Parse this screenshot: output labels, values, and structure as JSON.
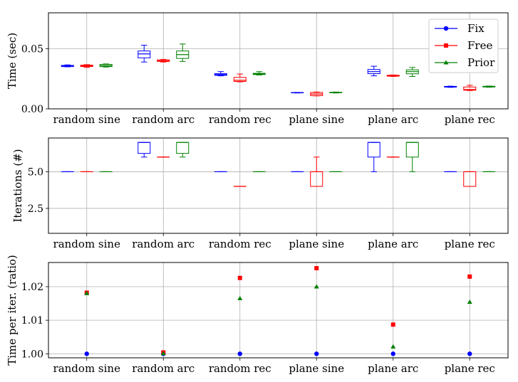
{
  "colors": {
    "Fix": "#0000ff",
    "Free": "#ff0000",
    "Prior": "#008000"
  },
  "chart_data": [
    {
      "type": "box",
      "ylabel": "Time (sec)",
      "categories": [
        "random sine",
        "random arc",
        "random rec",
        "plane sine",
        "plane arc",
        "plane rec"
      ],
      "ylim": [
        0,
        0.08
      ],
      "yticks": [
        "0.00",
        "0.05"
      ],
      "ytick_values": [
        0,
        0.05
      ],
      "grid": true,
      "legend": {
        "placement": "top-right",
        "entries": [
          "Fix",
          "Free",
          "Prior"
        ]
      },
      "series": [
        {
          "name": "Fix",
          "marker": "circle",
          "boxes": [
            {
              "whislo": 0.035,
              "q1": 0.0352,
              "med": 0.0356,
              "q3": 0.0362,
              "whishi": 0.0366
            },
            {
              "whislo": 0.039,
              "q1": 0.0425,
              "med": 0.0458,
              "q3": 0.0482,
              "whishi": 0.053
            },
            {
              "whislo": 0.0275,
              "q1": 0.0279,
              "med": 0.0285,
              "q3": 0.0293,
              "whishi": 0.031
            },
            {
              "whislo": 0.0132,
              "q1": 0.0133,
              "med": 0.0135,
              "q3": 0.0136,
              "whishi": 0.0137
            },
            {
              "whislo": 0.0275,
              "q1": 0.0293,
              "med": 0.031,
              "q3": 0.0328,
              "whishi": 0.0355
            },
            {
              "whislo": 0.0179,
              "q1": 0.0181,
              "med": 0.0184,
              "q3": 0.0187,
              "whishi": 0.0189
            }
          ]
        },
        {
          "name": "Free",
          "marker": "square",
          "boxes": [
            {
              "whislo": 0.0345,
              "q1": 0.0352,
              "med": 0.0358,
              "q3": 0.0364,
              "whishi": 0.0368
            },
            {
              "whislo": 0.039,
              "q1": 0.0395,
              "med": 0.04,
              "q3": 0.0408,
              "whishi": 0.0412
            },
            {
              "whislo": 0.0225,
              "q1": 0.0228,
              "med": 0.0238,
              "q3": 0.0262,
              "whishi": 0.029
            },
            {
              "whislo": 0.0108,
              "q1": 0.011,
              "med": 0.0123,
              "q3": 0.0136,
              "whishi": 0.014
            },
            {
              "whislo": 0.027,
              "q1": 0.0272,
              "med": 0.0275,
              "q3": 0.028,
              "whishi": 0.0282
            },
            {
              "whislo": 0.0152,
              "q1": 0.0155,
              "med": 0.0162,
              "q3": 0.0182,
              "whishi": 0.0196
            }
          ]
        },
        {
          "name": "Prior",
          "marker": "triangle",
          "boxes": [
            {
              "whislo": 0.0348,
              "q1": 0.0352,
              "med": 0.036,
              "q3": 0.037,
              "whishi": 0.0374
            },
            {
              "whislo": 0.0395,
              "q1": 0.042,
              "med": 0.0452,
              "q3": 0.0482,
              "whishi": 0.054
            },
            {
              "whislo": 0.0282,
              "q1": 0.0286,
              "med": 0.029,
              "q3": 0.0296,
              "whishi": 0.031
            },
            {
              "whislo": 0.0132,
              "q1": 0.0134,
              "med": 0.0136,
              "q3": 0.0138,
              "whishi": 0.014
            },
            {
              "whislo": 0.027,
              "q1": 0.0292,
              "med": 0.031,
              "q3": 0.0325,
              "whishi": 0.0345
            },
            {
              "whislo": 0.018,
              "q1": 0.0182,
              "med": 0.0185,
              "q3": 0.0188,
              "whishi": 0.019
            }
          ]
        }
      ]
    },
    {
      "type": "box",
      "ylabel": "Iterations (#)",
      "categories": [
        "random sine",
        "random arc",
        "random rec",
        "plane sine",
        "plane arc",
        "plane rec"
      ],
      "ylim": [
        0.8,
        7.3
      ],
      "yticks": [
        "2.5",
        "5.0"
      ],
      "ytick_values": [
        2.5,
        5.0
      ],
      "grid": true,
      "series": [
        {
          "name": "Fix",
          "boxes": [
            {
              "whislo": 5,
              "q1": 5,
              "med": 5,
              "q3": 5,
              "whishi": 5
            },
            {
              "whislo": 6,
              "q1": 6.25,
              "med": 7,
              "q3": 7,
              "whishi": 7
            },
            {
              "whislo": 5,
              "q1": 5,
              "med": 5,
              "q3": 5,
              "whishi": 5
            },
            {
              "whislo": 5,
              "q1": 5,
              "med": 5,
              "q3": 5,
              "whishi": 5
            },
            {
              "whislo": 5,
              "q1": 6,
              "med": 7,
              "q3": 7,
              "whishi": 7
            },
            {
              "whislo": 5,
              "q1": 5,
              "med": 5,
              "q3": 5,
              "whishi": 5
            }
          ]
        },
        {
          "name": "Free",
          "boxes": [
            {
              "whislo": 5,
              "q1": 5,
              "med": 5,
              "q3": 5,
              "whishi": 5
            },
            {
              "whislo": 6,
              "q1": 6,
              "med": 6,
              "q3": 6,
              "whishi": 6
            },
            {
              "whislo": 4,
              "q1": 4,
              "med": 4,
              "q3": 4,
              "whishi": 4
            },
            {
              "whislo": 4,
              "q1": 4,
              "med": 5,
              "q3": 5,
              "whishi": 6
            },
            {
              "whislo": 6,
              "q1": 6,
              "med": 6,
              "q3": 6,
              "whishi": 6
            },
            {
              "whislo": 4,
              "q1": 4,
              "med": 5,
              "q3": 5,
              "whishi": 5
            }
          ]
        },
        {
          "name": "Prior",
          "boxes": [
            {
              "whislo": 5,
              "q1": 5,
              "med": 5,
              "q3": 5,
              "whishi": 5
            },
            {
              "whislo": 6,
              "q1": 6.25,
              "med": 7,
              "q3": 7,
              "whishi": 7
            },
            {
              "whislo": 5,
              "q1": 5,
              "med": 5,
              "q3": 5,
              "whishi": 5
            },
            {
              "whislo": 5,
              "q1": 5,
              "med": 5,
              "q3": 5,
              "whishi": 5
            },
            {
              "whislo": 5,
              "q1": 6,
              "med": 7,
              "q3": 7,
              "whishi": 7
            },
            {
              "whislo": 5,
              "q1": 5,
              "med": 5,
              "q3": 5,
              "whishi": 5
            }
          ]
        }
      ]
    },
    {
      "type": "scatter",
      "ylabel": "Time per iter. (ratio)",
      "categories": [
        "random sine",
        "random arc",
        "random rec",
        "plane sine",
        "plane arc",
        "plane rec"
      ],
      "ylim": [
        0.9988,
        1.0272
      ],
      "yticks": [
        "1.00",
        "1.01",
        "1.02"
      ],
      "ytick_values": [
        1.0,
        1.01,
        1.02
      ],
      "grid": true,
      "series": [
        {
          "name": "Fix",
          "marker": "circle",
          "values": [
            1.0,
            1.0,
            1.0,
            1.0,
            1.0,
            1.0
          ]
        },
        {
          "name": "Free",
          "marker": "square",
          "values": [
            1.0182,
            1.0004,
            1.0226,
            1.0255,
            1.0087,
            1.023
          ]
        },
        {
          "name": "Prior",
          "marker": "triangle",
          "values": [
            1.018,
            1.0001,
            1.0165,
            1.02,
            1.0021,
            1.0154
          ]
        }
      ]
    }
  ]
}
